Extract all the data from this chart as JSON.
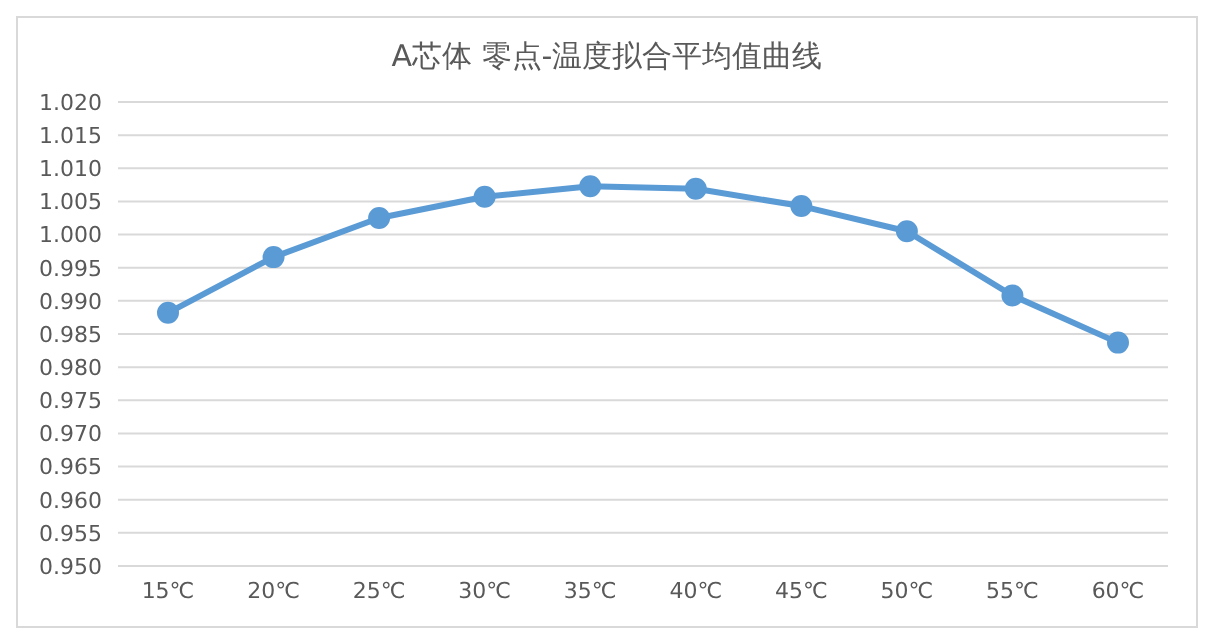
{
  "chart_data": {
    "type": "line",
    "title": "A芯体 零点-温度拟合平均值曲线",
    "categories": [
      "15℃",
      "20℃",
      "25℃",
      "30℃",
      "35℃",
      "40℃",
      "45℃",
      "50℃",
      "55℃",
      "60℃"
    ],
    "series": [
      {
        "color": "#5b9bd5",
        "values": [
          0.9882,
          0.9966,
          1.0025,
          1.0057,
          1.0073,
          1.0069,
          1.0043,
          1.0005,
          0.9908,
          0.9837
        ]
      }
    ],
    "ylim": [
      0.95,
      1.02
    ],
    "yticks": [
      {
        "value": 0.95,
        "label": "0.950"
      },
      {
        "value": 0.955,
        "label": "0.955"
      },
      {
        "value": 0.96,
        "label": "0.960"
      },
      {
        "value": 0.965,
        "label": "0.965"
      },
      {
        "value": 0.97,
        "label": "0.970"
      },
      {
        "value": 0.975,
        "label": "0.975"
      },
      {
        "value": 0.98,
        "label": "0.980"
      },
      {
        "value": 0.985,
        "label": "0.985"
      },
      {
        "value": 0.99,
        "label": "0.990"
      },
      {
        "value": 0.995,
        "label": "0.995"
      },
      {
        "value": 1.0,
        "label": "1.000"
      },
      {
        "value": 1.005,
        "label": "1.005"
      },
      {
        "value": 1.01,
        "label": "1.010"
      },
      {
        "value": 1.015,
        "label": "1.015"
      },
      {
        "value": 1.02,
        "label": "1.020"
      }
    ],
    "grid": "y",
    "legend": false,
    "marker": "circle",
    "line_style": "solid"
  }
}
